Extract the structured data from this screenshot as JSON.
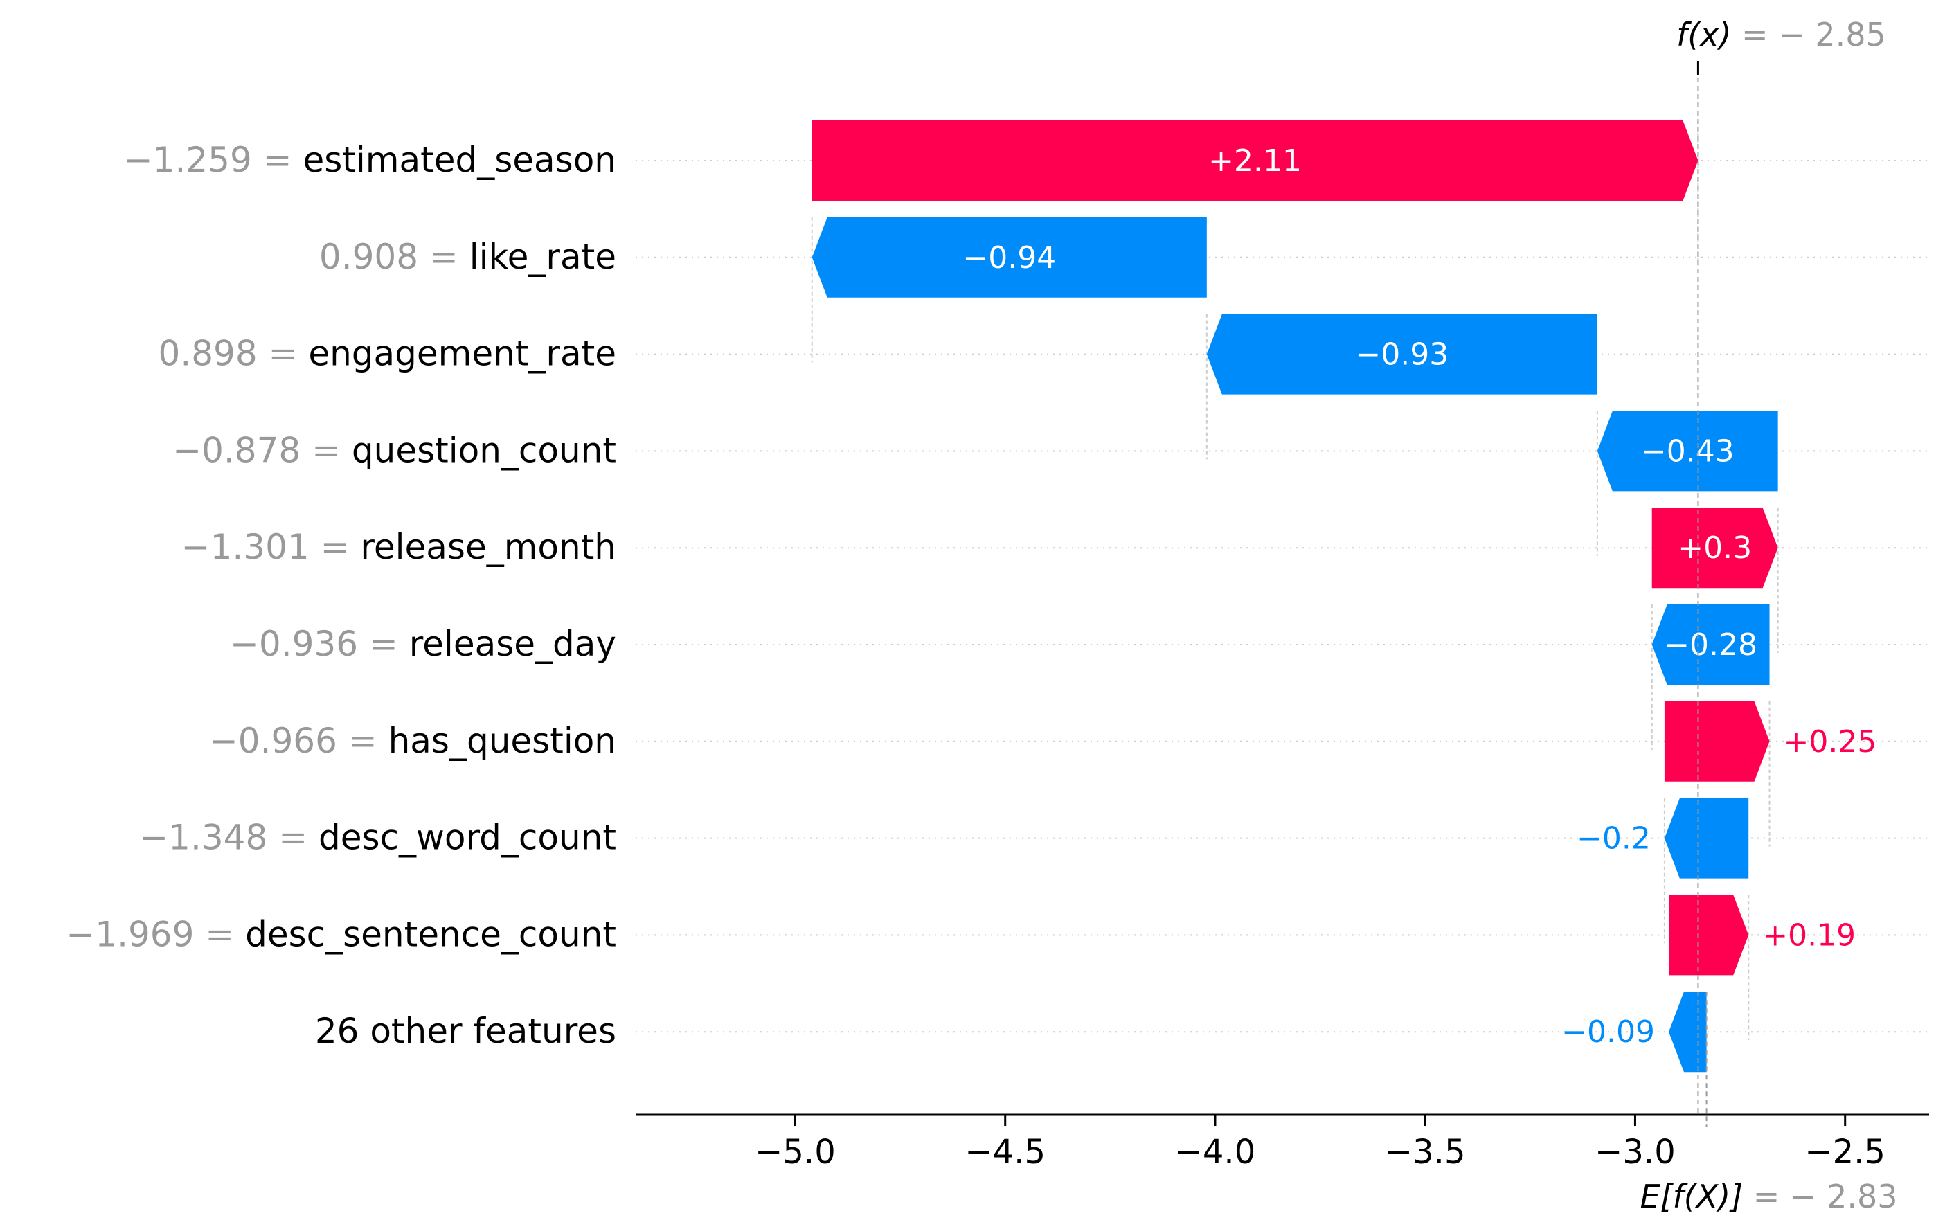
{
  "chart_data": {
    "type": "waterfall",
    "xlim": [
      -5.38,
      -2.3
    ],
    "x_ticks": [
      {
        "value": -5.0,
        "label": "−5.0"
      },
      {
        "value": -4.5,
        "label": "−4.5"
      },
      {
        "value": -4.0,
        "label": "−4.0"
      },
      {
        "value": -3.5,
        "label": "−3.5"
      },
      {
        "value": -3.0,
        "label": "−3.0"
      },
      {
        "value": -2.5,
        "label": "−2.5"
      }
    ],
    "fx": {
      "value": -2.85,
      "prefix": "f(x)",
      "value_label": " = − 2.85"
    },
    "expected": {
      "value": -2.83,
      "prefix": "E[f(X)]",
      "value_label": " = − 2.83"
    },
    "features": [
      {
        "feature_value": "−1.259 =",
        "name": "estimated_season",
        "shap": 2.11,
        "start": -4.96,
        "end": -2.85,
        "label": "+2.11",
        "label_inside": true
      },
      {
        "feature_value": "0.908 =",
        "name": "like_rate",
        "shap": -0.94,
        "start": -4.02,
        "end": -4.96,
        "label": "−0.94",
        "label_inside": true
      },
      {
        "feature_value": "0.898 =",
        "name": "engagement_rate",
        "shap": -0.93,
        "start": -3.09,
        "end": -4.02,
        "label": "−0.93",
        "label_inside": true
      },
      {
        "feature_value": "−0.878 =",
        "name": "question_count",
        "shap": -0.43,
        "start": -2.66,
        "end": -3.09,
        "label": "−0.43",
        "label_inside": true
      },
      {
        "feature_value": "−1.301 =",
        "name": "release_month",
        "shap": 0.3,
        "start": -2.96,
        "end": -2.66,
        "label": "+0.3",
        "label_inside": true
      },
      {
        "feature_value": "−0.936 =",
        "name": "release_day",
        "shap": -0.28,
        "start": -2.68,
        "end": -2.96,
        "label": "−0.28",
        "label_inside": true
      },
      {
        "feature_value": "−0.966 =",
        "name": "has_question",
        "shap": 0.25,
        "start": -2.93,
        "end": -2.68,
        "label": "+0.25",
        "label_inside": false
      },
      {
        "feature_value": "−1.348 =",
        "name": "desc_word_count",
        "shap": -0.2,
        "start": -2.73,
        "end": -2.93,
        "label": "−0.2",
        "label_inside": false
      },
      {
        "feature_value": "−1.969 =",
        "name": "desc_sentence_count",
        "shap": 0.19,
        "start": -2.92,
        "end": -2.73,
        "label": "+0.19",
        "label_inside": false
      },
      {
        "feature_value": "",
        "name": "26 other features",
        "shap": -0.09,
        "start": -2.83,
        "end": -2.92,
        "label": "−0.09",
        "label_inside": false
      }
    ],
    "colors": {
      "positive": "#ff0051",
      "negative": "#008bfb",
      "feature_value_text": "#999999",
      "feature_name_text": "#000000",
      "grid": "#cccccc",
      "axis": "#000000"
    }
  }
}
